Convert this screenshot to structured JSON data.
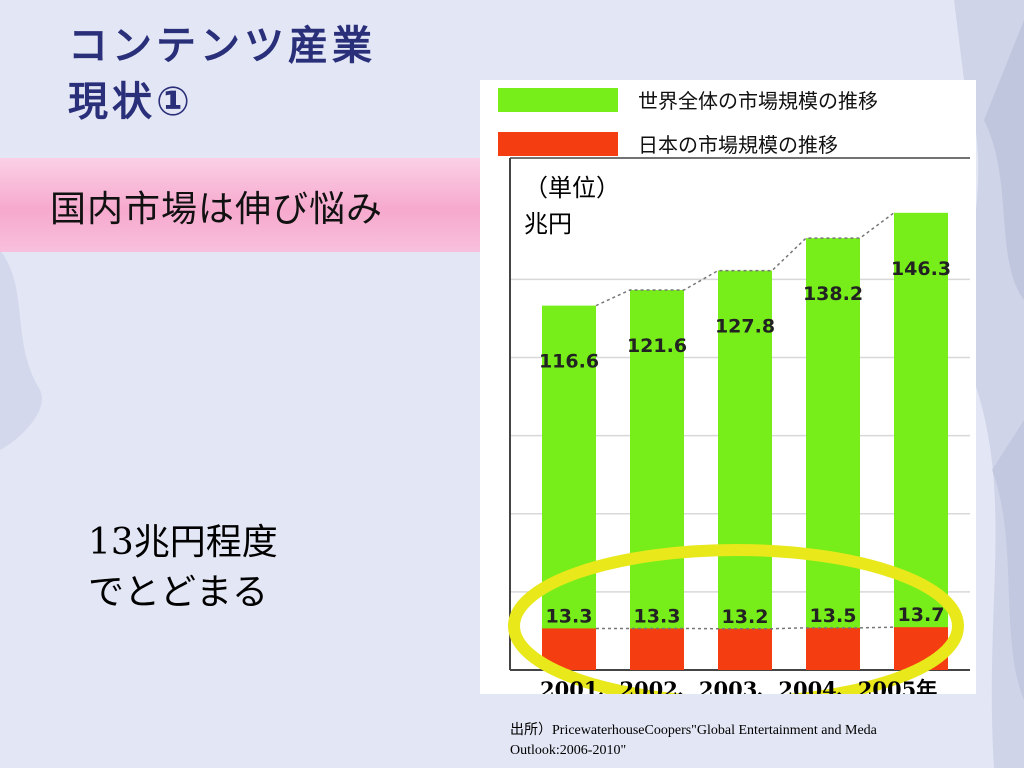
{
  "slide": {
    "title_line1": "コンテンツ産業",
    "title_line2": "現状①",
    "banner": "国内市場は伸び悩み",
    "note_line1": "13兆円程度",
    "note_line2": "でとどまる",
    "source_line1": "出所）PricewaterhouseCoopers\"Global Entertainment and Meda",
    "source_line2": "Outlook:2006-2010\""
  },
  "chart_data": {
    "type": "bar",
    "categories": [
      "2001",
      "2002",
      "2003",
      "2004",
      "2005"
    ],
    "x_axis_text": "2001、2002、2003、2004、2005年",
    "unit_label_line1": "（単位）",
    "unit_label_line2": "兆円",
    "series": [
      {
        "name": "世界全体の市場規模の推移",
        "values": [
          116.6,
          121.6,
          127.8,
          138.2,
          146.3
        ],
        "color": "#77ee1a"
      },
      {
        "name": "日本の市場規模の推移",
        "values": [
          13.3,
          13.3,
          13.2,
          13.5,
          13.7
        ],
        "color": "#f53d12"
      }
    ],
    "ylim": [
      0,
      160
    ],
    "grid": true,
    "legend_position": "top",
    "highlight_color": "#e8e81a"
  }
}
